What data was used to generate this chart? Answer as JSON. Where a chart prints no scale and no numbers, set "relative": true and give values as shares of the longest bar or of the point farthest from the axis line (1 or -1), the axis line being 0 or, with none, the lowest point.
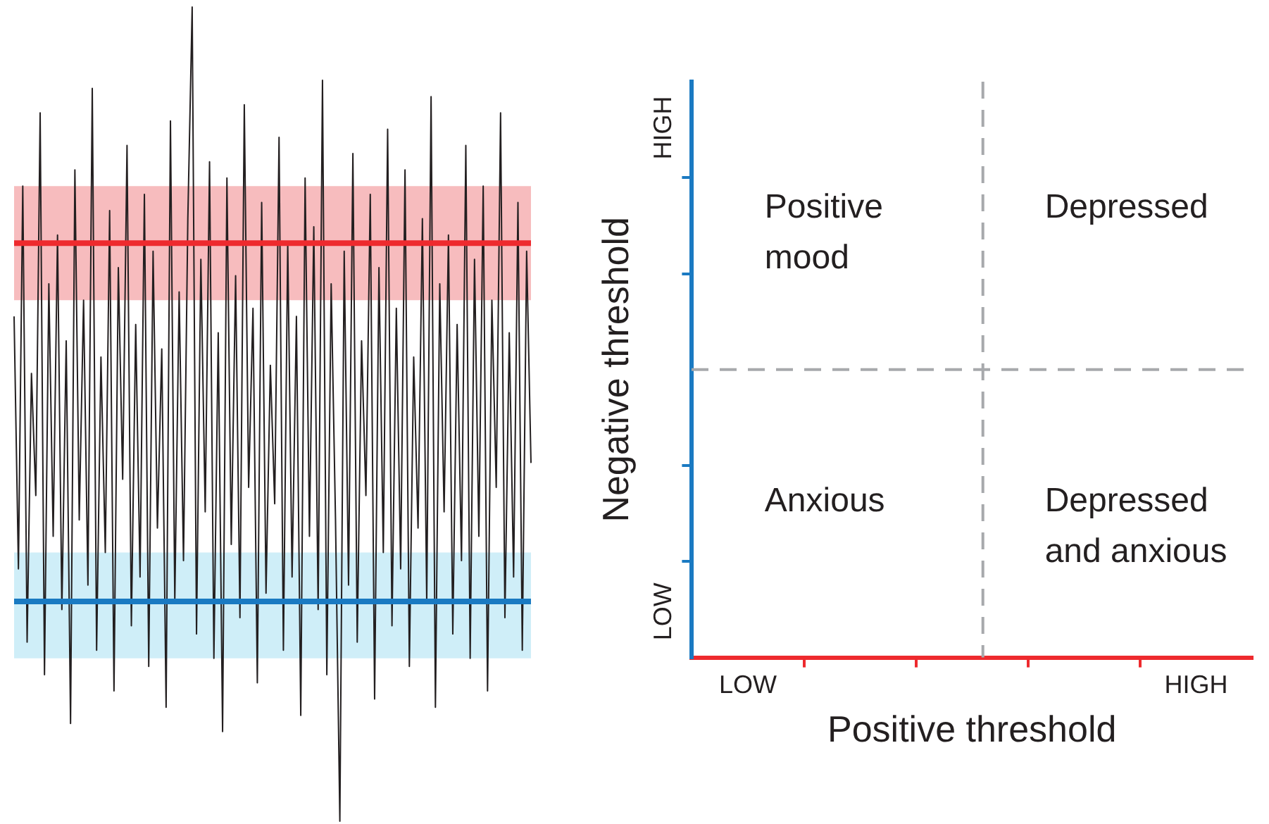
{
  "chart_data": [
    {
      "type": "line",
      "relative": true,
      "legend": false,
      "categories": [
        null,
        null,
        null,
        null,
        null,
        null,
        null,
        null,
        null,
        null,
        null,
        null,
        null,
        null,
        null,
        null,
        null,
        null,
        null,
        null,
        null,
        null,
        null,
        null,
        null,
        null,
        null,
        null,
        null,
        null,
        null,
        null,
        null,
        null,
        null,
        null,
        null,
        null,
        null,
        null,
        null,
        null,
        null,
        null,
        null,
        null,
        null,
        null,
        null,
        null,
        null,
        null,
        null,
        null,
        null,
        null,
        null,
        null,
        null,
        null,
        null,
        null,
        null,
        null,
        null,
        null,
        null,
        null,
        null,
        null,
        null,
        null,
        null,
        null,
        null,
        null,
        null,
        null,
        null,
        null,
        null,
        null,
        null,
        null,
        null,
        null,
        null,
        null,
        null,
        null,
        null,
        null,
        null,
        null,
        null,
        null,
        null,
        null,
        null,
        null,
        null,
        null,
        null,
        null,
        null,
        null,
        null,
        null,
        null,
        null,
        null,
        null,
        null,
        null,
        null,
        null,
        null,
        null,
        null,
        null
      ],
      "series": [
        {
          "color": "#231f20",
          "values": [
            0.62,
            0.31,
            0.78,
            0.22,
            0.55,
            0.4,
            0.87,
            0.18,
            0.66,
            0.35,
            0.72,
            0.26,
            0.59,
            0.12,
            0.8,
            0.37,
            0.64,
            0.29,
            0.9,
            0.21,
            0.57,
            0.33,
            0.75,
            0.16,
            0.68,
            0.42,
            0.83,
            0.24,
            0.61,
            0.3,
            0.77,
            0.19,
            0.7,
            0.36,
            0.58,
            0.14,
            0.86,
            0.27,
            0.65,
            0.32,
            0.74,
            1.0,
            0.23,
            0.69,
            0.38,
            0.81,
            0.2,
            0.6,
            0.11,
            0.79,
            0.34,
            0.67,
            0.25,
            0.88,
            0.41,
            0.63,
            0.17,
            0.76,
            0.28,
            0.56,
            0.39,
            0.84,
            0.21,
            0.71,
            0.3,
            0.62,
            0.13,
            0.79,
            0.35,
            0.73,
            0.26,
            0.91,
            0.18,
            0.66,
            0.37,
            0.0,
            0.7,
            0.29,
            0.82,
            0.22,
            0.59,
            0.4,
            0.77,
            0.15,
            0.68,
            0.33,
            0.85,
            0.24,
            0.63,
            0.31,
            0.8,
            0.19,
            0.57,
            0.36,
            0.74,
            0.27,
            0.89,
            0.14,
            0.66,
            0.38,
            0.72,
            0.23,
            0.61,
            0.32,
            0.83,
            0.2,
            0.69,
            0.35,
            0.78,
            0.16,
            0.64,
            0.41,
            0.87,
            0.25,
            0.6,
            0.3,
            0.76,
            0.21,
            0.7,
            0.44
          ]
        }
      ],
      "bands": [
        {
          "axis": "y",
          "from": 0.64,
          "to": 0.78,
          "color": "#f7bcbe"
        },
        {
          "axis": "y",
          "from": 0.2,
          "to": 0.33,
          "color": "#cfeef8"
        }
      ],
      "ref_lines": [
        {
          "axis": "y",
          "value": 0.71,
          "color": "#ee2a2e"
        },
        {
          "axis": "y",
          "value": 0.27,
          "color": "#1a7ac2"
        }
      ]
    },
    {
      "type": "other",
      "xlabel": "Positive threshold",
      "ylabel": "Negative threshold",
      "annotations": [
        "Positive mood",
        "Depressed",
        "Anxious",
        "Depressed and anxious",
        "LOW",
        "HIGH",
        "LOW",
        "HIGH"
      ]
    }
  ]
}
